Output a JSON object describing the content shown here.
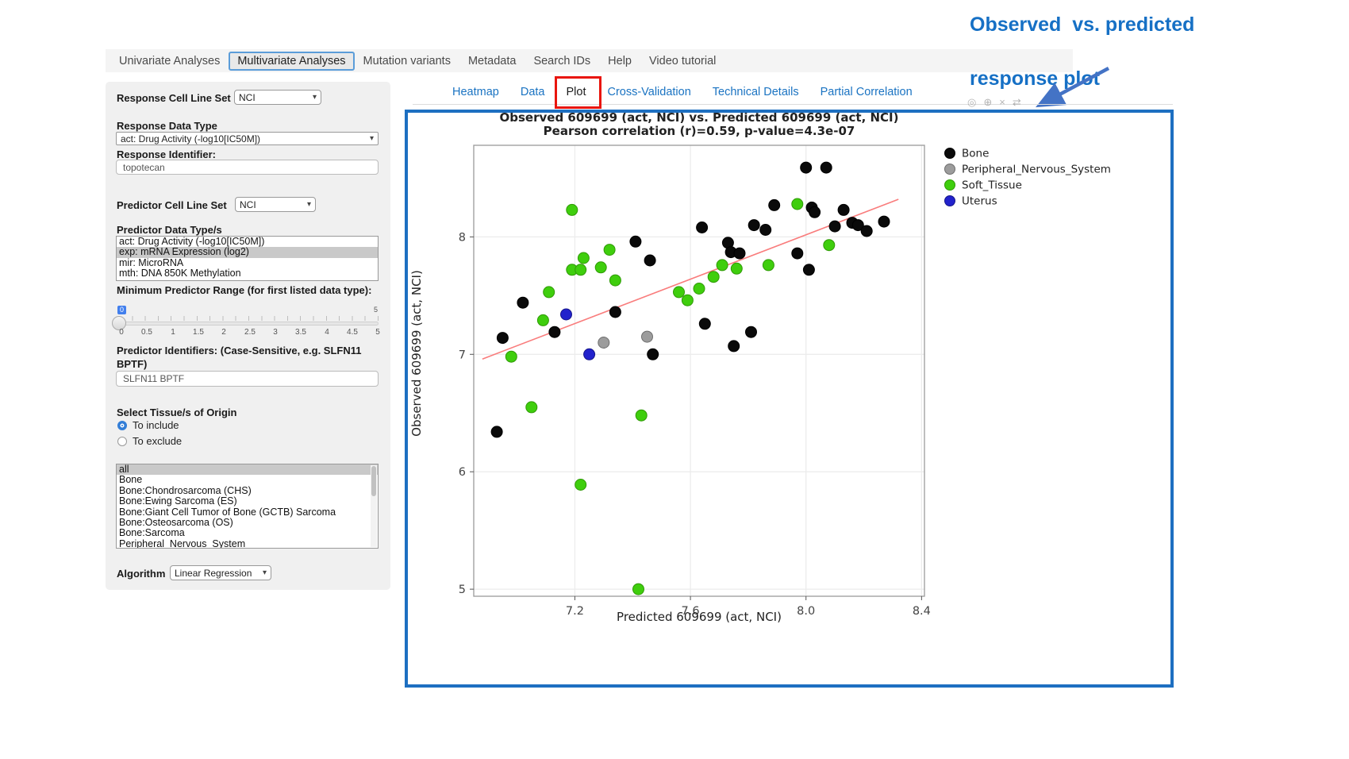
{
  "nav": {
    "tabs": [
      {
        "label": "Univariate Analyses",
        "active": false
      },
      {
        "label": "Multivariate Analyses",
        "active": true
      },
      {
        "label": "Mutation variants",
        "active": false
      },
      {
        "label": "Metadata",
        "active": false
      },
      {
        "label": "Search IDs",
        "active": false
      },
      {
        "label": "Help",
        "active": false
      },
      {
        "label": "Video tutorial",
        "active": false
      }
    ]
  },
  "annotation": {
    "line1": "Observed  vs. predicted",
    "line2": "response plot"
  },
  "sidebar": {
    "response_cell_line_set_label": "Response Cell Line Set",
    "response_cell_line_set_value": "NCI",
    "response_data_type_label": "Response Data Type",
    "response_data_type_value": "act: Drug Activity (-log10[IC50M])",
    "response_identifier_label": "Response Identifier:",
    "response_identifier_value": "topotecan",
    "predictor_cell_line_set_label": "Predictor Cell Line Set",
    "predictor_cell_line_set_value": "NCI",
    "predictor_data_types_label": "Predictor Data Type/s",
    "predictor_data_types": [
      {
        "label": "act: Drug Activity (-log10[IC50M])",
        "selected": false
      },
      {
        "label": "exp: mRNA Expression (log2)",
        "selected": true
      },
      {
        "label": "mir: MicroRNA",
        "selected": false
      },
      {
        "label": "mth: DNA 850K Methylation",
        "selected": false
      }
    ],
    "min_predictor_range_label": "Minimum Predictor Range (for first listed data type):",
    "slider": {
      "value": "0",
      "max_label": "5",
      "ticks": [
        "0",
        "0.5",
        "1",
        "1.5",
        "2",
        "2.5",
        "3",
        "3.5",
        "4",
        "4.5",
        "5"
      ]
    },
    "predictor_identifiers_label": "Predictor Identifiers: (Case-Sensitive, e.g. SLFN11 BPTF)",
    "predictor_identifiers_value": "SLFN11 BPTF",
    "tissue_label": "Select Tissue/s of Origin",
    "radio_include": "To include",
    "radio_exclude": "To exclude",
    "tissues": [
      {
        "label": "all",
        "selected": true
      },
      {
        "label": "Bone",
        "selected": false
      },
      {
        "label": "Bone:Chondrosarcoma (CHS)",
        "selected": false
      },
      {
        "label": "Bone:Ewing Sarcoma (ES)",
        "selected": false
      },
      {
        "label": "Bone:Giant Cell Tumor of Bone (GCTB) Sarcoma",
        "selected": false
      },
      {
        "label": "Bone:Osteosarcoma (OS)",
        "selected": false
      },
      {
        "label": "Bone:Sarcoma",
        "selected": false
      },
      {
        "label": "Peripheral_Nervous_System",
        "selected": false
      }
    ],
    "algorithm_label": "Algorithm",
    "algorithm_value": "Linear Regression"
  },
  "subtabs": [
    {
      "label": "Heatmap",
      "active": false
    },
    {
      "label": "Data",
      "active": false
    },
    {
      "label": "Plot",
      "active": true
    },
    {
      "label": "Cross-Validation",
      "active": false
    },
    {
      "label": "Technical Details",
      "active": false
    },
    {
      "label": "Partial Correlation",
      "active": false
    }
  ],
  "modebar": {
    "icons": [
      {
        "name": "camera",
        "glyph": "◎"
      },
      {
        "name": "zoom",
        "glyph": "⊕"
      },
      {
        "name": "reset",
        "glyph": "×"
      },
      {
        "name": "pan",
        "glyph": "⇄"
      }
    ]
  },
  "chart_data": {
    "type": "scatter",
    "title": "Observed 609699 (act, NCI) vs. Predicted 609699 (act, NCI)",
    "subtitle": "Pearson correlation (r)=0.59, p-value=4.3e-07",
    "xlabel": "Predicted 609699 (act, NCI)",
    "ylabel": "Observed 609699 (act, NCI)",
    "xlim": [
      6.85,
      8.41
    ],
    "ylim": [
      4.94,
      8.78
    ],
    "xticks": [
      7.2,
      7.6,
      8.0,
      8.4
    ],
    "xtick_labels": [
      "7.2",
      "7.6",
      "8.0",
      "8.4"
    ],
    "yticks": [
      5,
      6,
      7,
      8
    ],
    "ytick_labels": [
      "5",
      "6",
      "7",
      "8"
    ],
    "grid": true,
    "legend_position": "right",
    "series": [
      {
        "name": "Bone",
        "color": "#0a0a0a",
        "edge": "#000000",
        "points": [
          [
            8.0,
            8.59
          ],
          [
            8.07,
            8.59
          ],
          [
            7.89,
            8.27
          ],
          [
            8.02,
            8.25
          ],
          [
            8.03,
            8.21
          ],
          [
            8.13,
            8.23
          ],
          [
            8.27,
            8.13
          ],
          [
            8.1,
            8.09
          ],
          [
            8.16,
            8.12
          ],
          [
            8.18,
            8.1
          ],
          [
            8.21,
            8.05
          ],
          [
            7.64,
            8.08
          ],
          [
            7.82,
            8.1
          ],
          [
            7.86,
            8.06
          ],
          [
            7.41,
            7.96
          ],
          [
            7.73,
            7.95
          ],
          [
            7.74,
            7.87
          ],
          [
            7.77,
            7.86
          ],
          [
            7.97,
            7.86
          ],
          [
            7.46,
            7.8
          ],
          [
            8.01,
            7.72
          ],
          [
            7.02,
            7.44
          ],
          [
            7.34,
            7.36
          ],
          [
            7.65,
            7.26
          ],
          [
            7.13,
            7.19
          ],
          [
            7.81,
            7.19
          ],
          [
            6.95,
            7.14
          ],
          [
            7.75,
            7.07
          ],
          [
            7.47,
            7.0
          ],
          [
            6.93,
            6.34
          ]
        ]
      },
      {
        "name": "Peripheral_Nervous_System",
        "color": "#9c9c9c",
        "edge": "#6e6e6e",
        "points": [
          [
            7.3,
            7.1
          ],
          [
            7.45,
            7.15
          ]
        ]
      },
      {
        "name": "Soft_Tissue",
        "color": "#3fce0d",
        "edge": "#2f9a06",
        "points": [
          [
            7.19,
            8.23
          ],
          [
            7.97,
            8.28
          ],
          [
            8.08,
            7.93
          ],
          [
            7.32,
            7.89
          ],
          [
            7.23,
            7.82
          ],
          [
            7.29,
            7.74
          ],
          [
            7.19,
            7.72
          ],
          [
            7.22,
            7.72
          ],
          [
            7.87,
            7.76
          ],
          [
            7.71,
            7.76
          ],
          [
            7.76,
            7.73
          ],
          [
            7.68,
            7.66
          ],
          [
            7.34,
            7.63
          ],
          [
            7.63,
            7.56
          ],
          [
            7.56,
            7.53
          ],
          [
            7.11,
            7.53
          ],
          [
            7.59,
            7.46
          ],
          [
            7.09,
            7.29
          ],
          [
            6.98,
            6.98
          ],
          [
            7.05,
            6.55
          ],
          [
            7.43,
            6.48
          ],
          [
            7.22,
            5.89
          ],
          [
            7.42,
            5.0
          ]
        ]
      },
      {
        "name": "Uterus",
        "color": "#2222cc",
        "edge": "#16168a",
        "points": [
          [
            7.17,
            7.34
          ],
          [
            7.25,
            7.0
          ]
        ]
      }
    ],
    "trend_line": {
      "color": "#f97c7c",
      "x1": 6.88,
      "y1": 6.96,
      "x2": 8.32,
      "y2": 8.32
    }
  }
}
